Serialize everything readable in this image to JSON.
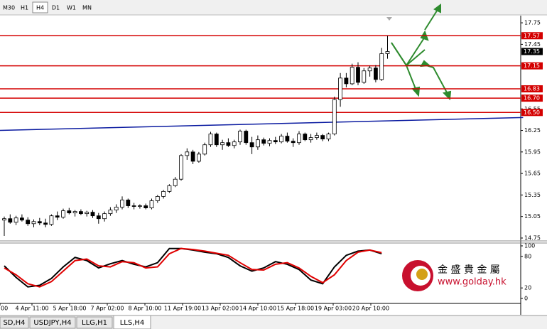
{
  "toolbar": {
    "buttons": [
      "M30",
      "H1",
      "H4",
      "D1",
      "W1",
      "MN"
    ],
    "active": 2
  },
  "tabs": {
    "items": [
      "SD,H4",
      "USDJPY,H4",
      "LLG,H1",
      "LLS,H4"
    ],
    "active": 3
  },
  "watermark": {
    "name": "金 盛 貴 金 屬",
    "url": "www.golday.hk"
  },
  "chart_data": {
    "type": "candlestick",
    "ylim": [
      14.73,
      17.85
    ],
    "yticks": [
      17.75,
      17.45,
      16.55,
      16.25,
      15.95,
      15.65,
      15.35,
      15.05,
      14.75
    ],
    "x_labels": [
      "00",
      "4 Apr 11:00",
      "5 Apr 18:00",
      "7 Apr 02:00",
      "8 Apr 10:00",
      "11 Apr 19:00",
      "13 Apr 02:00",
      "14 Apr 10:00",
      "15 Apr 18:00",
      "19 Apr 03:00",
      "20 Apr 10:00"
    ],
    "candles": [
      [
        15.0,
        15.05,
        14.78,
        15.02
      ],
      [
        15.02,
        15.08,
        14.95,
        14.97
      ],
      [
        14.97,
        15.06,
        14.93,
        15.03
      ],
      [
        15.03,
        15.08,
        14.98,
        15.0
      ],
      [
        15.0,
        15.04,
        14.92,
        14.95
      ],
      [
        14.95,
        15.01,
        14.9,
        14.98
      ],
      [
        14.98,
        15.03,
        14.93,
        14.96
      ],
      [
        14.96,
        15.02,
        14.9,
        14.94
      ],
      [
        14.94,
        15.08,
        14.92,
        15.06
      ],
      [
        15.06,
        15.12,
        15.0,
        15.04
      ],
      [
        15.04,
        15.16,
        15.02,
        15.13
      ],
      [
        15.13,
        15.17,
        15.08,
        15.1
      ],
      [
        15.1,
        15.14,
        15.05,
        15.12
      ],
      [
        15.12,
        15.15,
        15.07,
        15.09
      ],
      [
        15.09,
        15.13,
        15.05,
        15.11
      ],
      [
        15.11,
        15.14,
        15.03,
        15.06
      ],
      [
        15.06,
        15.1,
        14.95,
        15.02
      ],
      [
        15.02,
        15.12,
        14.98,
        15.09
      ],
      [
        15.09,
        15.18,
        15.06,
        15.14
      ],
      [
        15.14,
        15.22,
        15.1,
        15.18
      ],
      [
        15.18,
        15.33,
        15.15,
        15.28
      ],
      [
        15.28,
        15.3,
        15.17,
        15.2
      ],
      [
        15.2,
        15.24,
        15.15,
        15.19
      ],
      [
        15.19,
        15.22,
        15.16,
        15.2
      ],
      [
        15.2,
        15.23,
        15.15,
        15.17
      ],
      [
        15.17,
        15.3,
        15.15,
        15.27
      ],
      [
        15.27,
        15.35,
        15.24,
        15.33
      ],
      [
        15.33,
        15.42,
        15.3,
        15.4
      ],
      [
        15.4,
        15.5,
        15.38,
        15.48
      ],
      [
        15.48,
        15.6,
        15.46,
        15.57
      ],
      [
        15.57,
        15.92,
        15.55,
        15.9
      ],
      [
        15.9,
        16.0,
        15.84,
        15.95
      ],
      [
        15.95,
        15.98,
        15.78,
        15.82
      ],
      [
        15.82,
        15.95,
        15.8,
        15.92
      ],
      [
        15.92,
        16.08,
        15.9,
        16.05
      ],
      [
        16.05,
        16.23,
        16.02,
        16.2
      ],
      [
        16.2,
        16.22,
        16.02,
        16.05
      ],
      [
        16.05,
        16.12,
        15.98,
        16.08
      ],
      [
        16.08,
        16.14,
        16.02,
        16.04
      ],
      [
        16.04,
        16.12,
        16.0,
        16.09
      ],
      [
        16.09,
        16.26,
        16.05,
        16.24
      ],
      [
        16.24,
        16.26,
        16.05,
        16.08
      ],
      [
        16.08,
        16.16,
        15.92,
        16.02
      ],
      [
        16.02,
        16.18,
        15.98,
        16.12
      ],
      [
        16.12,
        16.15,
        16.04,
        16.07
      ],
      [
        16.07,
        16.14,
        16.03,
        16.11
      ],
      [
        16.11,
        16.16,
        16.06,
        16.09
      ],
      [
        16.09,
        16.2,
        16.07,
        16.17
      ],
      [
        16.17,
        16.22,
        16.08,
        16.1
      ],
      [
        16.1,
        16.14,
        16.02,
        16.08
      ],
      [
        16.08,
        16.24,
        16.05,
        16.2
      ],
      [
        16.2,
        16.22,
        16.1,
        16.12
      ],
      [
        16.12,
        16.2,
        16.08,
        16.15
      ],
      [
        16.15,
        16.22,
        16.12,
        16.18
      ],
      [
        16.18,
        16.2,
        16.1,
        16.13
      ],
      [
        16.13,
        16.22,
        16.1,
        16.2
      ],
      [
        16.2,
        16.72,
        16.18,
        16.68
      ],
      [
        16.68,
        17.05,
        16.58,
        16.98
      ],
      [
        16.98,
        17.05,
        16.85,
        16.9
      ],
      [
        16.9,
        17.18,
        16.88,
        17.13
      ],
      [
        17.13,
        17.2,
        16.88,
        16.92
      ],
      [
        16.92,
        17.12,
        16.9,
        17.08
      ],
      [
        17.08,
        17.15,
        17.0,
        17.12
      ],
      [
        17.12,
        17.16,
        16.92,
        16.96
      ],
      [
        16.96,
        17.4,
        16.94,
        17.32
      ],
      [
        17.32,
        17.57,
        17.25,
        17.35
      ]
    ],
    "current_price": 17.35,
    "levels": [
      17.57,
      17.15,
      16.83,
      {
        "value": 16.7,
        "label": "16.70"
      },
      {
        "value": 16.5,
        "label": "16.50"
      }
    ],
    "level_color": "#d40000",
    "ma": {
      "color": "#0a1aa0",
      "x": [
        -1,
        88
      ],
      "values": [
        16.25,
        16.43
      ]
    },
    "oscillator": {
      "ylim": [
        0,
        100
      ],
      "yticks": [
        100,
        80,
        20,
        0
      ],
      "x": [
        0,
        2,
        4,
        6,
        8,
        10,
        12,
        14,
        16,
        18,
        20,
        22,
        24,
        26,
        28,
        30,
        32,
        34,
        36,
        38,
        40,
        42,
        44,
        46,
        48,
        50,
        52,
        54,
        56,
        58,
        60,
        62,
        64
      ],
      "series": [
        {
          "color": "#000000",
          "values": [
            62,
            40,
            22,
            25,
            38,
            60,
            78,
            72,
            58,
            66,
            72,
            65,
            60,
            68,
            95,
            95,
            92,
            88,
            85,
            78,
            62,
            52,
            58,
            70,
            65,
            55,
            35,
            28,
            60,
            82,
            90,
            92,
            85
          ]
        },
        {
          "color": "#e00000",
          "values": [
            58,
            45,
            28,
            22,
            32,
            52,
            72,
            75,
            62,
            60,
            70,
            68,
            58,
            60,
            85,
            95,
            93,
            90,
            86,
            82,
            68,
            55,
            54,
            65,
            68,
            58,
            42,
            30,
            45,
            72,
            88,
            92,
            87
          ]
        }
      ]
    }
  }
}
